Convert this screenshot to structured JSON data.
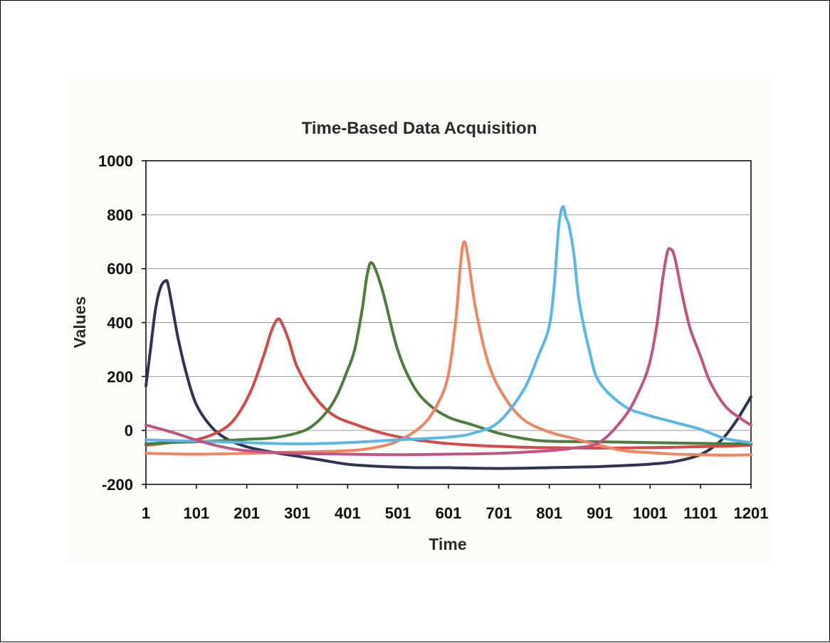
{
  "chart_data": {
    "type": "line",
    "title": "Time-Based Data Acquisition",
    "xlabel": "Time",
    "ylabel": "Values",
    "xlim": [
      1,
      1201
    ],
    "ylim": [
      -200,
      1000
    ],
    "x_ticks": [
      "1",
      "101",
      "201",
      "301",
      "401",
      "501",
      "601",
      "701",
      "801",
      "901",
      "1001",
      "1101",
      "1201"
    ],
    "y_ticks": [
      "1000",
      "800",
      "600",
      "400",
      "200",
      "0",
      "-200"
    ],
    "grid": "horizontal",
    "legend": "none",
    "series": [
      {
        "color": "#2f3356",
        "x": [
          1,
          10,
          20,
          30,
          40,
          45,
          55,
          65,
          80,
          100,
          130,
          160,
          200,
          250,
          300,
          350,
          400,
          450,
          500,
          550,
          600,
          650,
          700,
          750,
          800,
          850,
          900,
          950,
          1000,
          1050,
          1100,
          1140,
          1170,
          1190,
          1201
        ],
        "y": [
          165,
          300,
          450,
          530,
          555,
          540,
          440,
          340,
          220,
          100,
          15,
          -30,
          -60,
          -80,
          -95,
          -110,
          -125,
          -132,
          -136,
          -138,
          -138,
          -140,
          -141,
          -140,
          -138,
          -136,
          -134,
          -130,
          -125,
          -115,
          -90,
          -40,
          30,
          90,
          125
        ]
      },
      {
        "color": "#d34a48",
        "x": [
          1,
          50,
          100,
          150,
          180,
          210,
          235,
          250,
          262,
          270,
          285,
          300,
          330,
          370,
          420,
          470,
          520,
          580,
          650,
          750,
          850,
          950,
          1050,
          1150,
          1201
        ],
        "y": [
          -55,
          -45,
          -35,
          0,
          50,
          150,
          280,
          370,
          412,
          400,
          330,
          240,
          140,
          60,
          20,
          -10,
          -30,
          -45,
          -55,
          -62,
          -65,
          -65,
          -62,
          -58,
          -55
        ]
      },
      {
        "color": "#4b7d3d",
        "x": [
          1,
          50,
          100,
          150,
          200,
          250,
          300,
          330,
          360,
          380,
          400,
          415,
          430,
          440,
          450,
          470,
          500,
          530,
          560,
          600,
          650,
          700,
          750,
          800,
          900,
          1000,
          1100,
          1201
        ],
        "y": [
          -50,
          -45,
          -42,
          -38,
          -33,
          -28,
          -10,
          15,
          70,
          130,
          220,
          300,
          450,
          580,
          620,
          520,
          300,
          170,
          100,
          50,
          20,
          -10,
          -30,
          -40,
          -42,
          -45,
          -48,
          -50
        ]
      },
      {
        "color": "#f08660",
        "x": [
          1,
          100,
          200,
          300,
          400,
          450,
          500,
          550,
          580,
          600,
          615,
          625,
          632,
          640,
          655,
          680,
          710,
          750,
          800,
          850,
          900,
          950,
          1000,
          1050,
          1100,
          1150,
          1201
        ],
        "y": [
          -85,
          -88,
          -85,
          -80,
          -75,
          -65,
          -40,
          20,
          100,
          200,
          400,
          620,
          700,
          640,
          450,
          250,
          130,
          40,
          -5,
          -30,
          -55,
          -75,
          -82,
          -88,
          -90,
          -92,
          -90
        ]
      },
      {
        "color": "#5bb8e6",
        "x": [
          1,
          100,
          200,
          300,
          400,
          500,
          600,
          650,
          700,
          750,
          780,
          800,
          810,
          820,
          828,
          834,
          840,
          850,
          860,
          880,
          900,
          950,
          1000,
          1050,
          1100,
          1150,
          1201
        ],
        "y": [
          -35,
          -40,
          -45,
          -50,
          -45,
          -35,
          -25,
          -10,
          30,
          150,
          280,
          380,
          520,
          760,
          830,
          790,
          760,
          650,
          480,
          300,
          180,
          90,
          55,
          30,
          5,
          -30,
          -45
        ]
      },
      {
        "color": "#c05583",
        "x": [
          1,
          50,
          100,
          150,
          200,
          300,
          400,
          500,
          600,
          700,
          800,
          850,
          900,
          950,
          980,
          1000,
          1015,
          1025,
          1035,
          1042,
          1050,
          1065,
          1080,
          1100,
          1120,
          1150,
          1180,
          1201
        ],
        "y": [
          20,
          -5,
          -35,
          -60,
          -75,
          -85,
          -88,
          -90,
          -88,
          -85,
          -75,
          -65,
          -45,
          50,
          150,
          250,
          400,
          550,
          660,
          672,
          640,
          500,
          380,
          280,
          180,
          90,
          45,
          20
        ]
      }
    ]
  }
}
